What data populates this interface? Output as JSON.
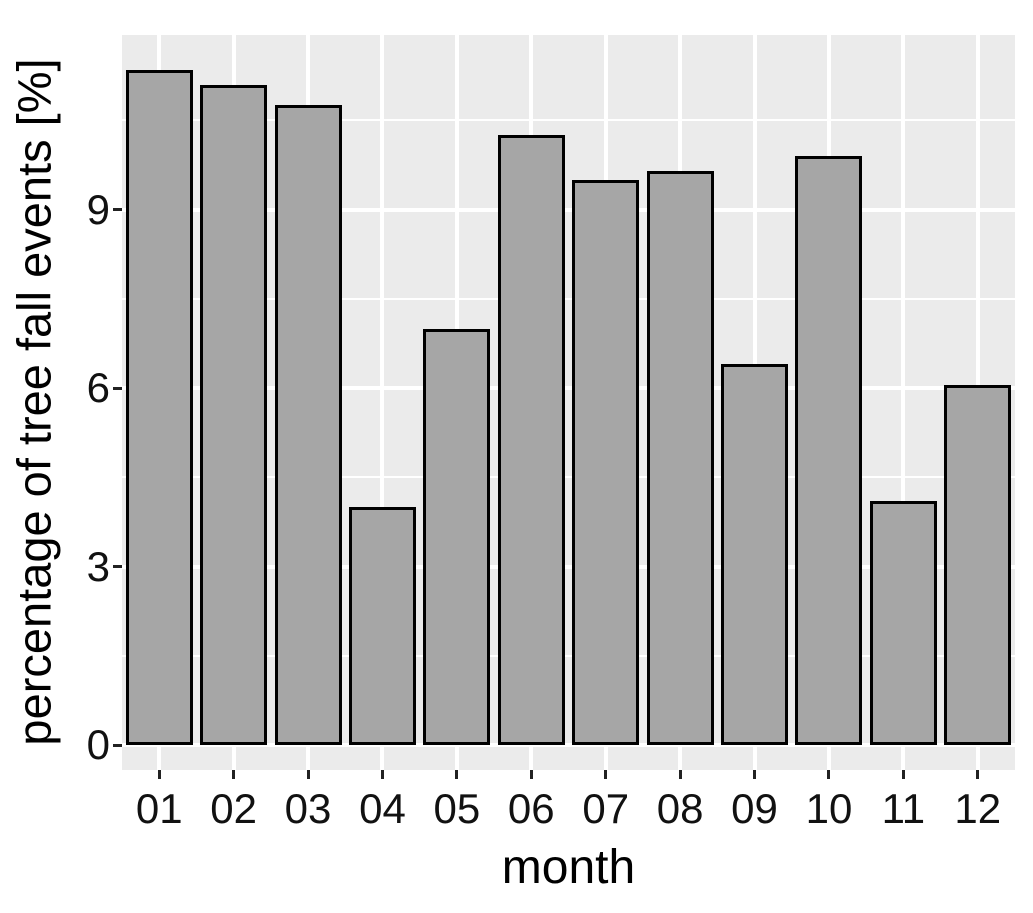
{
  "chart_data": {
    "type": "bar",
    "title": "",
    "xlabel": "month",
    "ylabel": "percentage of tree fall events [%]",
    "categories": [
      "01",
      "02",
      "03",
      "04",
      "05",
      "06",
      "07",
      "08",
      "09",
      "10",
      "11",
      "12"
    ],
    "values": [
      11.35,
      11.1,
      10.75,
      4.0,
      7.0,
      10.25,
      9.5,
      9.65,
      6.4,
      9.9,
      4.1,
      6.05
    ],
    "y_tick_labels": [
      "0",
      "3",
      "6",
      "9"
    ],
    "y_major_ticks": [
      0,
      3,
      6,
      9
    ],
    "y_minor_ticks": [
      1.5,
      4.5,
      7.5,
      10.5
    ],
    "ylim": [
      -0.42,
      11.93
    ],
    "grid": "on",
    "legend": "none",
    "colors": {
      "bar_fill": "#a6a6a6",
      "bar_stroke": "#000000",
      "panel_bg": "#ebebeb",
      "grid_major": "#ffffff",
      "grid_minor": "#ffffff",
      "axis_text": "#111111"
    }
  }
}
